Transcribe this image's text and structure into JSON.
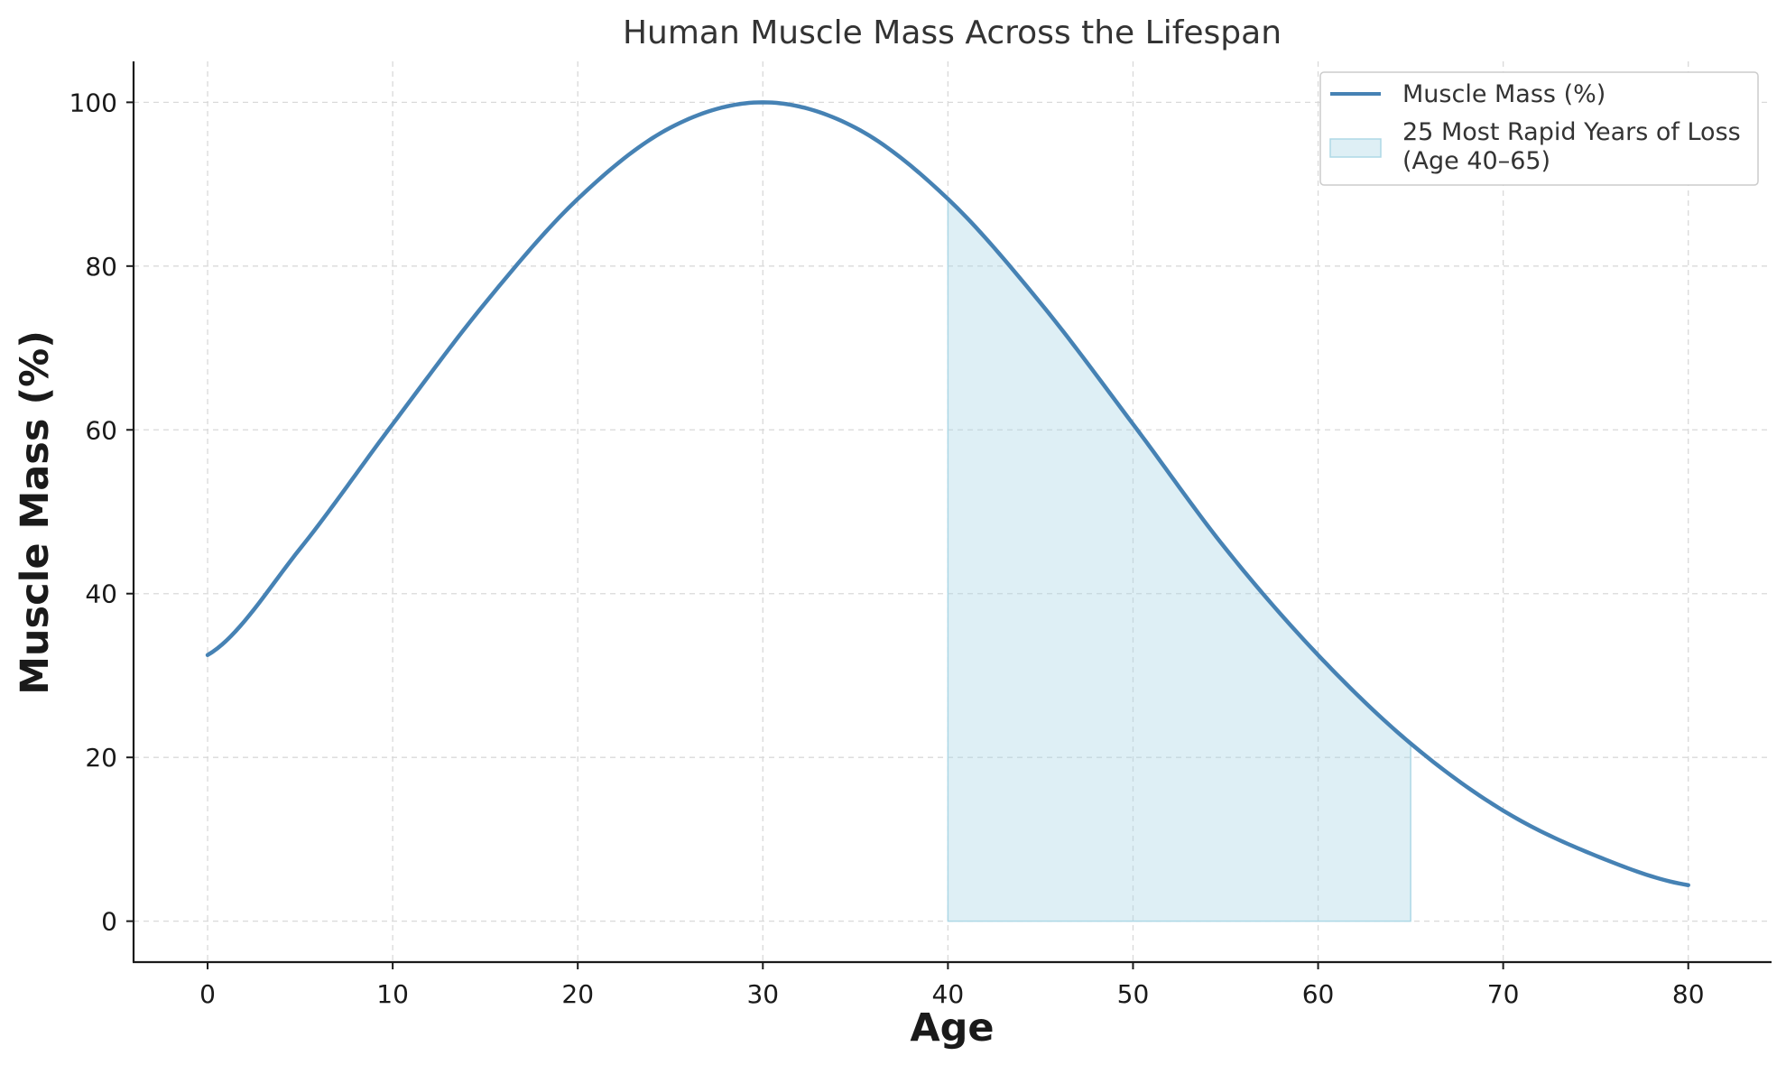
{
  "chart_data": {
    "type": "line",
    "title": "Human Muscle Mass Across the Lifespan",
    "xlabel": "Age",
    "ylabel": "Muscle Mass (%)",
    "xlim": [
      -4,
      84.5
    ],
    "ylim": [
      -5,
      105
    ],
    "xticks": [
      0,
      10,
      20,
      30,
      40,
      50,
      60,
      70,
      80
    ],
    "yticks": [
      0,
      20,
      40,
      60,
      80,
      100
    ],
    "grid": true,
    "legend_position": "upper right",
    "colors": {
      "line": "#4682b4",
      "shade": "#add8e6"
    },
    "series": [
      {
        "name": "Muscle Mass (%)",
        "x": [
          0,
          5,
          10,
          15,
          20,
          25,
          30,
          35,
          40,
          45,
          50,
          55,
          60,
          65,
          70,
          75,
          80
        ],
        "values": [
          32.5,
          45.5,
          60.7,
          75.5,
          88.2,
          96.9,
          100,
          96.9,
          88.2,
          75.5,
          60.7,
          45.5,
          32.5,
          21.7,
          13.5,
          8.0,
          4.4
        ]
      }
    ],
    "shaded_region": {
      "name": "25 Most Rapid Years of Loss",
      "name_line2": "(Age 40–65)",
      "x_start": 40,
      "x_end": 65
    }
  }
}
